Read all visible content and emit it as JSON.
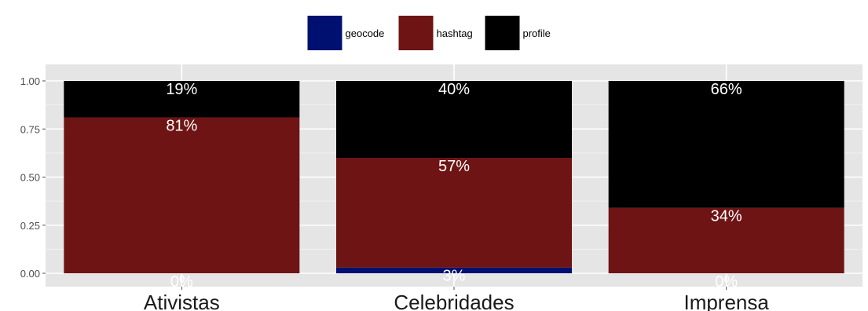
{
  "chart_data": {
    "type": "bar",
    "stacked": true,
    "normalized": true,
    "categories": [
      "Ativistas",
      "Celebridades",
      "Imprensa"
    ],
    "series": [
      {
        "name": "geocode",
        "color": "#001070",
        "values": [
          0.0,
          0.03,
          0.0
        ],
        "labels": [
          "0%",
          "3%",
          "0%"
        ]
      },
      {
        "name": "hashtag",
        "color": "#6e1414",
        "values": [
          0.81,
          0.57,
          0.34
        ],
        "labels": [
          "81%",
          "57%",
          "34%"
        ]
      },
      {
        "name": "profile",
        "color": "#000000",
        "values": [
          0.19,
          0.4,
          0.66
        ],
        "labels": [
          "19%",
          "40%",
          "66%"
        ]
      }
    ],
    "ylim": [
      0,
      1
    ],
    "yticks": [
      "0.00",
      "0.25",
      "0.50",
      "0.75",
      "1.00"
    ],
    "grid": true,
    "legend_position": "top",
    "background": "#e5e5e5"
  }
}
